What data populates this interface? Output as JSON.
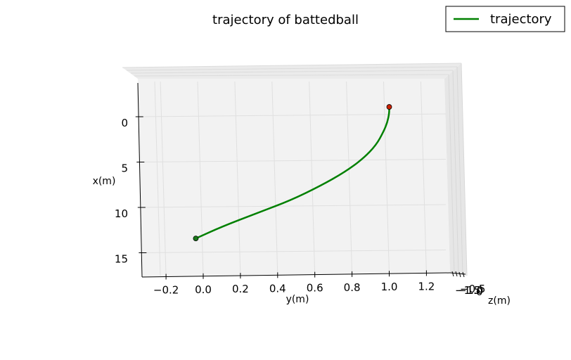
{
  "chart_data": {
    "type": "line",
    "projection": "3d",
    "title": "trajectory of battedball",
    "xlabel": "y(m)",
    "ylabel": "x(m)",
    "zlabel": "z(m)",
    "x_ticks": [
      -0.2,
      0.0,
      0.2,
      0.4,
      0.6,
      0.8,
      1.0,
      1.2
    ],
    "x_tick_labels": [
      "−0.2",
      "0.0",
      "0.2",
      "0.4",
      "0.6",
      "0.8",
      "1.0",
      "1.2"
    ],
    "y_ticks": [
      0,
      5,
      10,
      15
    ],
    "y_tick_labels": [
      "0",
      "5",
      "10",
      "15"
    ],
    "z_tick_labels": [
      "−1.5",
      "−1.0",
      "−0.5",
      "0"
    ],
    "xlim": [
      -0.33,
      1.33
    ],
    "ylim": [
      -2.5,
      17.1
    ],
    "series": [
      {
        "name": "trajectory",
        "color": "#008000",
        "points": [
          {
            "y_m": 1.0,
            "x_m": -1.7
          },
          {
            "y_m": 1.0,
            "x_m": -1.0
          },
          {
            "y_m": 0.99,
            "x_m": 0.0
          },
          {
            "y_m": 0.97,
            "x_m": 1.0
          },
          {
            "y_m": 0.93,
            "x_m": 2.5
          },
          {
            "y_m": 0.86,
            "x_m": 4.0
          },
          {
            "y_m": 0.76,
            "x_m": 5.5
          },
          {
            "y_m": 0.63,
            "x_m": 7.0
          },
          {
            "y_m": 0.47,
            "x_m": 8.6
          },
          {
            "y_m": 0.29,
            "x_m": 10.0
          },
          {
            "y_m": 0.1,
            "x_m": 11.5
          },
          {
            "y_m": -0.04,
            "x_m": 12.8
          }
        ]
      }
    ],
    "markers": [
      {
        "kind": "start",
        "color": "#cc2200",
        "y_m": 1.0,
        "x_m": -1.7
      },
      {
        "kind": "end",
        "color": "#1a7a1a",
        "y_m": -0.04,
        "x_m": 12.8
      }
    ],
    "grid": true,
    "legend": {
      "placement": "top-right",
      "entries": [
        "trajectory"
      ]
    }
  }
}
